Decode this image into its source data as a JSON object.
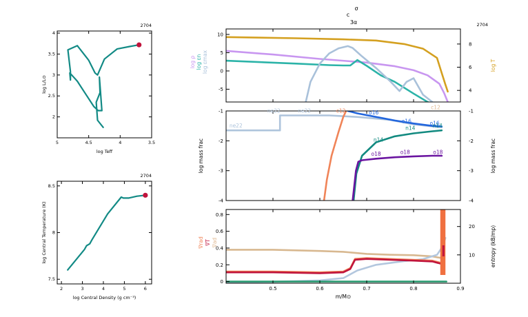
{
  "top_labels": {
    "line1": "σ",
    "line2": "c",
    "line3": "3α"
  },
  "chart_data": [
    {
      "id": "hr",
      "type": "line",
      "model_number": "2704",
      "xlabel": "log Teff",
      "ylabel": "log L/L⊙",
      "xlim": [
        5.0,
        3.5
      ],
      "ylim": [
        1.5,
        4.05
      ],
      "xticks": [
        {
          "v": 5,
          "t": "5"
        },
        {
          "v": 4.5,
          "t": "4.5"
        },
        {
          "v": 4,
          "t": "4"
        },
        {
          "v": 3.5,
          "t": "3.5"
        }
      ],
      "yticks": [
        {
          "v": 2,
          "t": "2"
        },
        {
          "v": 2.5,
          "t": "2.5"
        },
        {
          "v": 3,
          "t": "3"
        },
        {
          "v": 3.5,
          "t": "3.5"
        },
        {
          "v": 4,
          "t": "4"
        }
      ],
      "color": "#128a85",
      "marker_color": "#c0143c",
      "track_x": [
        4.27,
        4.36,
        4.38,
        4.32,
        4.33,
        4.29,
        4.35,
        4.42,
        4.55,
        4.68,
        4.8,
        4.79,
        4.79,
        4.83,
        4.68,
        4.5,
        4.4,
        4.36,
        4.25,
        4.05,
        3.85,
        3.7
      ],
      "track_y": [
        1.75,
        1.92,
        2.35,
        2.58,
        2.95,
        2.15,
        2.15,
        2.25,
        2.55,
        2.85,
        3.05,
        2.88,
        3.08,
        3.6,
        3.7,
        3.35,
        3.05,
        3.0,
        3.38,
        3.62,
        3.68,
        3.72
      ],
      "final_x": 3.7,
      "final_y": 3.72
    },
    {
      "id": "rho_t",
      "type": "line",
      "model_number": "2704",
      "xlabel": "log Central Density (g cm⁻³)",
      "ylabel": "log Central Temperature (K)",
      "xlim": [
        1.8,
        6.3
      ],
      "ylim": [
        7.45,
        8.55
      ],
      "xticks": [
        {
          "v": 2,
          "t": "2"
        },
        {
          "v": 3,
          "t": "3"
        },
        {
          "v": 4,
          "t": "4"
        },
        {
          "v": 5,
          "t": "5"
        },
        {
          "v": 6,
          "t": "6"
        }
      ],
      "yticks": [
        {
          "v": 7.5,
          "t": "7.5"
        },
        {
          "v": 8,
          "t": "8"
        },
        {
          "v": 8.5,
          "t": "8.5"
        }
      ],
      "color": "#128a85",
      "marker_color": "#c0143c",
      "track_x": [
        2.3,
        3.1,
        3.2,
        3.35,
        3.45,
        4.2,
        4.85,
        4.95,
        5.2,
        5.6,
        6.0
      ],
      "track_y": [
        7.6,
        7.82,
        7.86,
        7.88,
        7.92,
        8.2,
        8.38,
        8.37,
        8.37,
        8.39,
        8.4
      ],
      "final_x": 6.0,
      "final_y": 8.4
    },
    {
      "id": "profiles_top",
      "type": "line",
      "model_number": "2704",
      "xlim": [
        0.4,
        0.9
      ],
      "ylim": [
        -8.5,
        11.5
      ],
      "y2lim": [
        3.0,
        9.3
      ],
      "yticks": [
        {
          "v": -5,
          "t": "-5"
        },
        {
          "v": 0,
          "t": "0"
        },
        {
          "v": 5,
          "t": "5"
        },
        {
          "v": 10,
          "t": "10"
        }
      ],
      "y2ticks": [
        {
          "v": 4,
          "t": "4"
        },
        {
          "v": 6,
          "t": "6"
        },
        {
          "v": 8,
          "t": "8"
        }
      ],
      "ylabel_parts": [
        {
          "text": "log ρ",
          "color": "#c896f0"
        },
        {
          "text": "log εn",
          "color": "#2bb3a8"
        },
        {
          "text": "log εmax",
          "color": "#a9c1da"
        }
      ],
      "y2label": "log T",
      "y2label_color": "#d4a020",
      "series": [
        {
          "axis": "y2",
          "color": "#d4a020",
          "x": [
            0.4,
            0.55,
            0.65,
            0.72,
            0.78,
            0.82,
            0.85,
            0.86,
            0.868,
            0.873
          ],
          "y": [
            8.6,
            8.5,
            8.4,
            8.3,
            8.0,
            7.6,
            6.8,
            5.5,
            4.5,
            3.9
          ]
        },
        {
          "axis": "y",
          "color": "#c896f0",
          "x": [
            0.4,
            0.5,
            0.6,
            0.7,
            0.76,
            0.8,
            0.83,
            0.855,
            0.865,
            0.873
          ],
          "y": [
            5.5,
            4.5,
            3.3,
            2.3,
            1.3,
            0.2,
            -1.2,
            -3.5,
            -6.0,
            -8.5
          ]
        },
        {
          "axis": "y",
          "color": "#2bb3a8",
          "x": [
            0.4,
            0.55,
            0.62,
            0.65,
            0.665,
            0.68,
            0.7,
            0.73,
            0.76,
            0.8,
            0.83,
            0.86,
            0.873
          ],
          "y": [
            2.8,
            2.0,
            1.6,
            1.5,
            1.5,
            3.0,
            1.4,
            -1.2,
            -3.0,
            -6.2,
            -8.5,
            -10.2,
            -11.5
          ]
        },
        {
          "axis": "y",
          "color": "#a9c1da",
          "x": [
            0.57,
            0.58,
            0.6,
            0.62,
            0.64,
            0.66,
            0.67,
            0.69,
            0.72,
            0.75,
            0.77,
            0.785,
            0.8,
            0.82,
            0.84
          ],
          "y": [
            -8.5,
            -3.0,
            2.0,
            4.8,
            6.2,
            6.8,
            6.3,
            4.0,
            0.8,
            -2.8,
            -5.5,
            -3.0,
            -2.0,
            -6.5,
            -8.5
          ]
        }
      ]
    },
    {
      "id": "abundances",
      "type": "line",
      "model_number": "",
      "xlim": [
        0.4,
        0.9
      ],
      "ylim": [
        -4.0,
        -1.0
      ],
      "yticks": [
        {
          "v": -4,
          "t": "-4"
        },
        {
          "v": -3,
          "t": "-3"
        },
        {
          "v": -2,
          "t": "-2"
        },
        {
          "v": -1,
          "t": "-1"
        }
      ],
      "y2ticks": [
        {
          "v": -4,
          "t": "-4"
        },
        {
          "v": -3,
          "t": "-3"
        },
        {
          "v": -2,
          "t": "-2"
        },
        {
          "v": -1,
          "t": "-1"
        }
      ],
      "ylabel": "log mass frac",
      "y2label": "log mass frac",
      "series": [
        {
          "name": "ne22",
          "color": "#aec4dc",
          "x": [
            0.4,
            0.515,
            0.515,
            0.62,
            0.68,
            0.75,
            0.8,
            0.86
          ],
          "y": [
            -1.65,
            -1.65,
            -1.15,
            -1.15,
            -1.2,
            -1.3,
            -1.45,
            -1.55
          ]
        },
        {
          "name": "c12",
          "color": "#f08458",
          "x": [
            0.609,
            0.615,
            0.625,
            0.64,
            0.65,
            0.656
          ],
          "y": [
            -4.0,
            -3.3,
            -2.5,
            -1.7,
            -1.2,
            -1.0
          ]
        },
        {
          "name": "o16",
          "color": "#2266dd",
          "x": [
            0.66,
            0.68,
            0.72,
            0.76,
            0.8,
            0.84,
            0.86
          ],
          "y": [
            -1.0,
            -1.08,
            -1.2,
            -1.32,
            -1.42,
            -1.5,
            -1.52
          ]
        },
        {
          "name": "n14",
          "color": "#128a80",
          "x": [
            0.672,
            0.678,
            0.69,
            0.72,
            0.76,
            0.8,
            0.84,
            0.86
          ],
          "y": [
            -4.0,
            -3.1,
            -2.5,
            -2.05,
            -1.85,
            -1.75,
            -1.68,
            -1.65
          ]
        },
        {
          "name": "o18",
          "color": "#6a14a0",
          "x": [
            0.67,
            0.677,
            0.682,
            0.69,
            0.72,
            0.76,
            0.8,
            0.84,
            0.86
          ],
          "y": [
            -4.0,
            -3.0,
            -2.7,
            -2.65,
            -2.6,
            -2.55,
            -2.52,
            -2.5,
            -2.5
          ]
        }
      ],
      "labels": [
        {
          "text": "ne22",
          "x": 0.421,
          "y": -1.55,
          "color": "#aec4dc"
        },
        {
          "text": "ne22",
          "x": 0.502,
          "y": -1.06,
          "color": "#aec4dc"
        },
        {
          "text": "ne22",
          "x": 0.567,
          "y": -1.06,
          "color": "#aec4dc"
        },
        {
          "text": "c12",
          "x": 0.645,
          "y": -1.06,
          "color": "#f08458"
        },
        {
          "text": "c12",
          "x": 0.847,
          "y": -0.94,
          "color": "#e0b890"
        },
        {
          "text": "o16",
          "x": 0.715,
          "y": -1.12,
          "color": "#2266dd"
        },
        {
          "text": "o16",
          "x": 0.785,
          "y": -1.4,
          "color": "#2266dd"
        },
        {
          "text": "o16",
          "x": 0.845,
          "y": -1.47,
          "color": "#2266dd"
        },
        {
          "text": "n14",
          "x": 0.793,
          "y": -1.63,
          "color": "#128a80"
        },
        {
          "text": "n14",
          "x": 0.851,
          "y": -1.55,
          "color": "#128a80"
        },
        {
          "text": "n14",
          "x": 0.725,
          "y": -2.03,
          "color": "#128a80"
        },
        {
          "text": "o18",
          "x": 0.72,
          "y": -2.5,
          "color": "#6a14a0"
        },
        {
          "text": "o18",
          "x": 0.782,
          "y": -2.44,
          "color": "#6a14a0"
        },
        {
          "text": "o18",
          "x": 0.852,
          "y": -2.44,
          "color": "#6a14a0"
        }
      ]
    },
    {
      "id": "gradients",
      "type": "line",
      "model_number": "",
      "xlim": [
        0.4,
        0.9
      ],
      "ylim": [
        -0.02,
        0.86
      ],
      "y2lim": [
        0,
        26
      ],
      "yticks": [
        {
          "v": 0,
          "t": "0"
        },
        {
          "v": 0.2,
          "t": "0.2"
        },
        {
          "v": 0.4,
          "t": "0.4"
        },
        {
          "v": 0.6,
          "t": "0.6"
        },
        {
          "v": 0.8,
          "t": "0.8"
        }
      ],
      "y2ticks": [
        {
          "v": 10,
          "t": "10"
        },
        {
          "v": 20,
          "t": "20"
        }
      ],
      "xticks": [
        {
          "v": 0.5,
          "t": "0.5"
        },
        {
          "v": 0.6,
          "t": "0.6"
        },
        {
          "v": 0.7,
          "t": "0.7"
        },
        {
          "v": 0.8,
          "t": "0.8"
        },
        {
          "v": 0.9,
          "t": "0.9"
        }
      ],
      "xlabel": "m/M⊙",
      "ylabel_parts": [
        {
          "text": "∇rad",
          "color": "#f08458"
        },
        {
          "text": "∇T",
          "color": "#c0143c"
        },
        {
          "text": "∇ad",
          "color": "#e0b890"
        }
      ],
      "y2label": "entropy (kB/mp)",
      "series": [
        {
          "name": "grad_ad",
          "color": "#d8b890",
          "x": [
            0.4,
            0.5,
            0.6,
            0.65,
            0.7,
            0.75,
            0.8,
            0.84,
            0.86
          ],
          "y": [
            0.38,
            0.38,
            0.365,
            0.355,
            0.33,
            0.32,
            0.315,
            0.3,
            0.28
          ]
        },
        {
          "name": "entropy",
          "axis": "y2",
          "color": "#b3c7de",
          "x": [
            0.4,
            0.5,
            0.6,
            0.65,
            0.68,
            0.72,
            0.78,
            0.82,
            0.85,
            0.862,
            0.868
          ],
          "y": [
            0.3,
            0.5,
            1.0,
            1.8,
            4.5,
            6.5,
            7.8,
            8.5,
            10.0,
            13.0,
            16.0
          ]
        },
        {
          "name": "grad_rad",
          "color": "#f08458",
          "x": [
            0.4,
            0.5,
            0.6,
            0.65,
            0.665,
            0.675,
            0.7,
            0.8,
            0.84,
            0.86
          ],
          "y": [
            0.12,
            0.12,
            0.11,
            0.12,
            0.16,
            0.27,
            0.28,
            0.26,
            0.25,
            0.22
          ]
        },
        {
          "name": "grad_T",
          "color": "#c0143c",
          "x": [
            0.4,
            0.5,
            0.6,
            0.65,
            0.665,
            0.675,
            0.7,
            0.8,
            0.84,
            0.86
          ],
          "y": [
            0.11,
            0.11,
            0.1,
            0.11,
            0.15,
            0.26,
            0.27,
            0.25,
            0.24,
            0.21
          ]
        },
        {
          "name": "base",
          "color": "#2a9a70",
          "x": [
            0.4,
            0.87
          ],
          "y": [
            0.0,
            0.0
          ]
        }
      ],
      "spike": {
        "x0": 0.857,
        "x1": 0.868,
        "y": 0.86,
        "color": "#f07040"
      }
    }
  ]
}
